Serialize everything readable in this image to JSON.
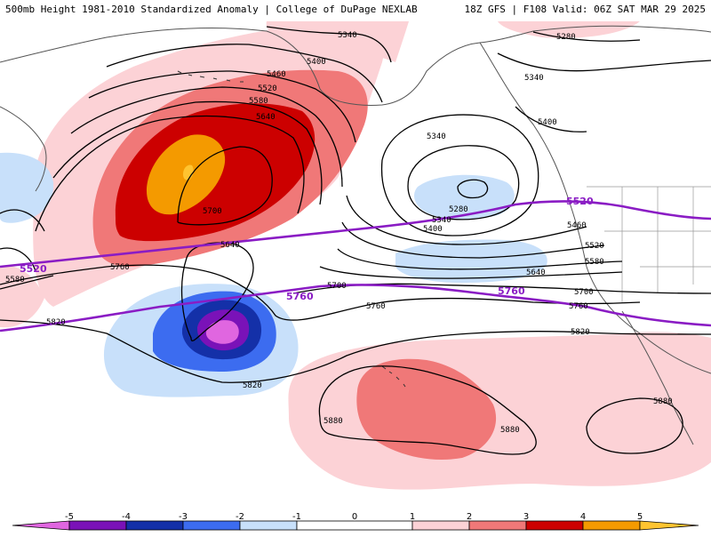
{
  "header": {
    "title": "500mb Height 1981-2010 Standardized Anomaly | College of DuPage NEXLAB",
    "run_info": "18Z GFS | F108 Valid: 06Z SAT MAR 29 2025"
  },
  "map": {
    "contour_labels": {
      "c5340a": "5340",
      "c5400a": "5400",
      "c5460a": "5460",
      "c5520a": "5520",
      "c5580a": "5580",
      "c5640a": "5640",
      "c5700a": "5700",
      "c5640b": "5640",
      "c5760a": "5760",
      "c5580b": "5580",
      "c5820a": "5820",
      "c5700b": "5700",
      "c5760b": "5760",
      "c5820b": "5820",
      "c5880a": "5880",
      "c5880b": "5880",
      "c5880c": "5880",
      "c5280a": "5280",
      "c5340b": "5340",
      "c5400b": "5400",
      "c5340c": "5340",
      "c5280b": "5280",
      "c5340d": "5340",
      "c5400c": "5400",
      "c5460b": "5460",
      "c5520b": "5520",
      "c5580c": "5580",
      "c5640c": "5640",
      "c5700c": "5700",
      "c5760c": "5760",
      "c5820c": "5820"
    },
    "purple_labels": {
      "p5520a": "5520",
      "p5520b": "5520",
      "p5760a": "5760",
      "p5760b": "5760"
    },
    "purple_color": "#8a1cc4"
  },
  "colorbar": {
    "ticks": [
      "-5",
      "-4",
      "-3",
      "-2",
      "-1",
      "0",
      "1",
      "2",
      "3",
      "4",
      "5"
    ],
    "colors": {
      "neg5": "#e066e0",
      "neg4": "#7a12b8",
      "neg3": "#1430a8",
      "neg2": "#3c6cf0",
      "neg1": "#c8e0fa",
      "zero": "#ffffff",
      "pos1": "#fcd2d6",
      "pos2": "#f07878",
      "pos3": "#cc0000",
      "pos4": "#f49a00",
      "pos5": "#ffc430"
    }
  }
}
